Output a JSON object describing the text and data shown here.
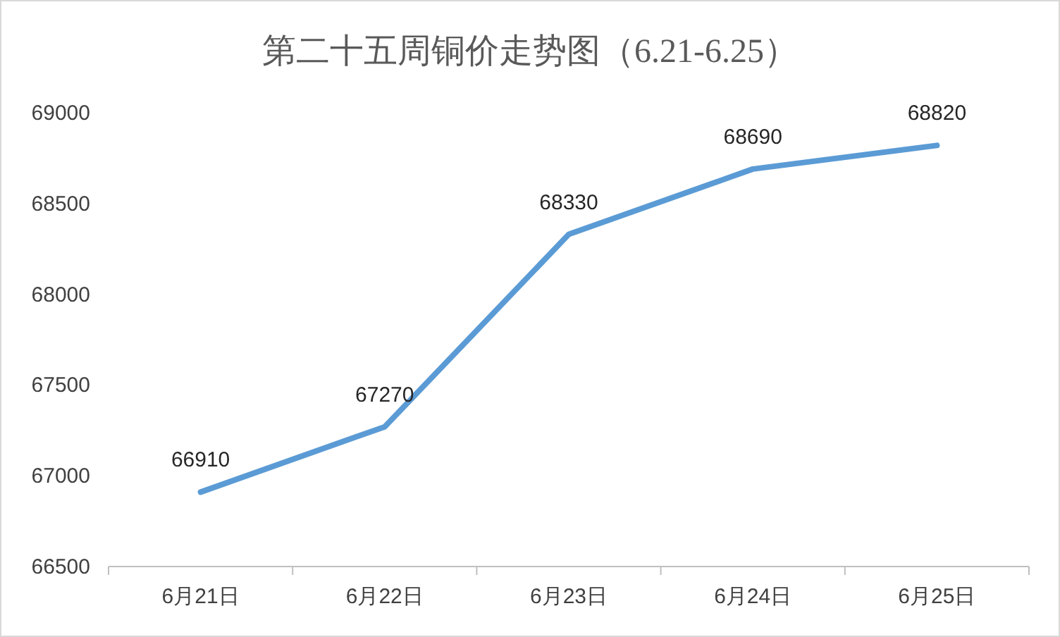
{
  "chart_data": {
    "type": "line",
    "title": "第二十五周铜价走势图（6.21-6.25）",
    "categories": [
      "6月21日",
      "6月22日",
      "6月23日",
      "6月24日",
      "6月25日"
    ],
    "series": [
      {
        "color": "#5b9bd5",
        "values": [
          66910,
          67270,
          68330,
          68690,
          68820
        ]
      }
    ],
    "ylim": [
      66500,
      69000
    ],
    "yticks": [
      66500,
      67000,
      67500,
      68000,
      68500,
      69000
    ],
    "data_labels": true,
    "grid": false,
    "marker": "none",
    "line_style": "solid"
  }
}
